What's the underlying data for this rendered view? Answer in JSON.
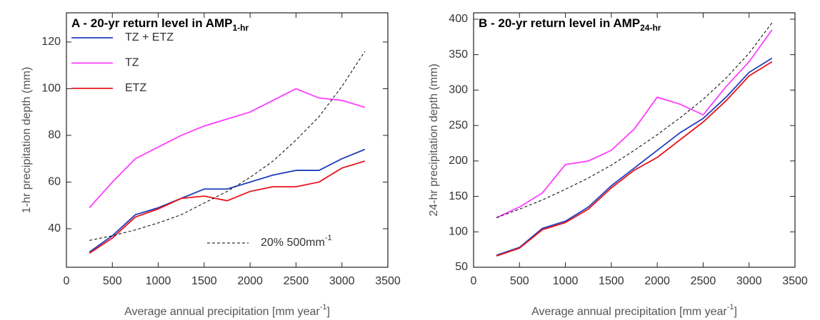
{
  "chart_data": [
    {
      "type": "line",
      "title": "A - 20-yr return level in AMP",
      "title_sub": "1-hr",
      "xlabel": "Average annual precipitation [mm year",
      "xlabel_sup": "-1",
      "xlabel_end": "]",
      "ylabel": "1-hr precipitation depth (mm)",
      "x": [
        250,
        500,
        750,
        1000,
        1250,
        1500,
        1750,
        2000,
        2250,
        2500,
        2750,
        3000,
        3250
      ],
      "series": [
        {
          "name": "TZ + ETZ",
          "color": "#1f3fbf",
          "values": [
            30,
            37,
            46,
            49,
            53,
            57,
            57,
            60,
            63,
            65,
            65,
            70,
            74
          ]
        },
        {
          "name": "TZ",
          "color": "#ff3cff",
          "values": [
            49,
            60,
            70,
            75,
            80,
            84,
            87,
            90,
            95,
            100,
            96,
            95,
            92
          ]
        },
        {
          "name": "ETZ",
          "color": "#e8141a",
          "values": [
            29.5,
            36,
            45,
            48.5,
            53,
            54,
            52,
            56,
            58,
            58,
            60,
            66,
            69
          ]
        },
        {
          "name": "20% 500mm",
          "name_sup": "-1",
          "color": "#000000",
          "dashed": true,
          "values": [
            35,
            37,
            39.5,
            42.5,
            46,
            51,
            56,
            62,
            69,
            78,
            88,
            101,
            116
          ]
        }
      ],
      "xlim": [
        0,
        3500
      ],
      "xticks": [
        0,
        500,
        1000,
        1500,
        2000,
        2500,
        3000,
        3500
      ],
      "ylim": [
        23.5,
        132.5
      ],
      "yticks": [
        40,
        60,
        80,
        100,
        120
      ]
    },
    {
      "type": "line",
      "title": "B - 20-yr return level in AMP",
      "title_sub": "24-hr",
      "xlabel": "Average annual precipitation [mm year",
      "xlabel_sup": "-1",
      "xlabel_end": "]",
      "ylabel": "24-hr precipitation depth (mm)",
      "x": [
        250,
        500,
        750,
        1000,
        1250,
        1500,
        1750,
        2000,
        2250,
        2500,
        2750,
        3000,
        3250
      ],
      "series": [
        {
          "color": "#1f3fbf",
          "values": [
            67,
            78,
            105,
            115,
            135,
            165,
            190,
            215,
            240,
            260,
            290,
            325,
            345
          ]
        },
        {
          "color": "#ff3cff",
          "values": [
            120,
            135,
            155,
            195,
            200,
            215,
            245,
            290,
            280,
            265,
            305,
            340,
            385
          ]
        },
        {
          "color": "#e8141a",
          "values": [
            66,
            77,
            103,
            113,
            132,
            162,
            187,
            205,
            230,
            255,
            285,
            320,
            340
          ]
        },
        {
          "color": "#000000",
          "dashed": true,
          "values": [
            120,
            132,
            145,
            160,
            176,
            194,
            215,
            237,
            261,
            287,
            317,
            352,
            395
          ]
        }
      ],
      "xlim": [
        0,
        3500
      ],
      "xticks": [
        0,
        500,
        1000,
        1500,
        2000,
        2500,
        3000,
        3500
      ],
      "ylim": [
        50,
        409
      ],
      "yticks": [
        50,
        100,
        150,
        200,
        250,
        300,
        350,
        400
      ]
    }
  ]
}
